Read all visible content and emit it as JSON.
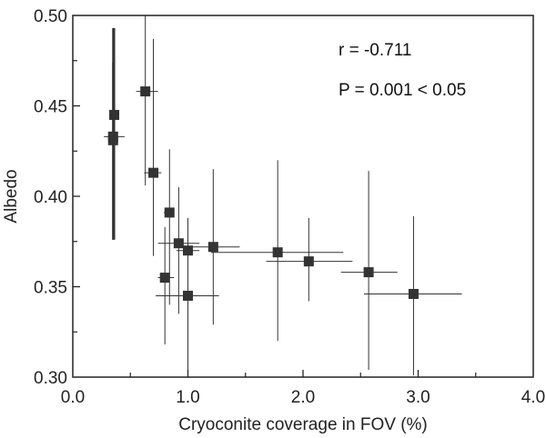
{
  "chart_data": {
    "type": "scatter",
    "xlabel": "Cryoconite coverage in FOV (%)",
    "ylabel": "Albedo",
    "xlim": [
      0.0,
      4.0
    ],
    "ylim": [
      0.3,
      0.5
    ],
    "x_ticks": [
      "0.0",
      "1.0",
      "2.0",
      "3.0",
      "4.0"
    ],
    "y_ticks": [
      "0.30",
      "0.35",
      "0.40",
      "0.45",
      "0.50"
    ],
    "grid": false,
    "marker": "square",
    "marker_color": "#333333",
    "annotations": [
      "r = -0.711",
      "P = 0.001 < 0.05"
    ],
    "points": [
      {
        "x": 0.35,
        "y": 0.431,
        "y_err": [
          0.376,
          0.474
        ],
        "x_err": [
          0.31,
          0.39
        ]
      },
      {
        "x": 0.35,
        "y": 0.433,
        "y_err": [
          0.376,
          0.493
        ],
        "x_err": [
          0.27,
          0.45
        ]
      },
      {
        "x": 0.36,
        "y": 0.445,
        "y_err": [
          0.376,
          0.493
        ],
        "x_err": [
          0.32,
          0.4
        ]
      },
      {
        "x": 0.63,
        "y": 0.458,
        "y_err": [
          0.406,
          0.52
        ],
        "x_err": [
          0.55,
          0.74
        ]
      },
      {
        "x": 0.7,
        "y": 0.413,
        "y_err": [
          0.367,
          0.487
        ],
        "x_err": [
          0.62,
          0.77
        ]
      },
      {
        "x": 0.84,
        "y": 0.391,
        "y_err": [
          0.34,
          0.426
        ],
        "x_err": [
          0.79,
          0.88
        ]
      },
      {
        "x": 0.8,
        "y": 0.355,
        "y_err": [
          0.318,
          0.383
        ],
        "x_err": [
          0.74,
          0.88
        ]
      },
      {
        "x": 0.92,
        "y": 0.374,
        "y_err": [
          0.335,
          0.405
        ],
        "x_err": [
          0.74,
          1.1
        ]
      },
      {
        "x": 1.0,
        "y": 0.37,
        "y_err": [
          0.335,
          0.388
        ],
        "x_err": [
          0.9,
          1.1
        ]
      },
      {
        "x": 1.0,
        "y": 0.345,
        "y_err": [
          0.3,
          0.373
        ],
        "x_err": [
          0.72,
          1.27
        ]
      },
      {
        "x": 1.22,
        "y": 0.372,
        "y_err": [
          0.329,
          0.415
        ],
        "x_err": [
          0.95,
          1.45
        ]
      },
      {
        "x": 1.78,
        "y": 0.369,
        "y_err": [
          0.32,
          0.42
        ],
        "x_err": [
          1.2,
          2.35
        ]
      },
      {
        "x": 2.05,
        "y": 0.364,
        "y_err": [
          0.342,
          0.388
        ],
        "x_err": [
          1.68,
          2.43
        ]
      },
      {
        "x": 2.57,
        "y": 0.358,
        "y_err": [
          0.304,
          0.414
        ],
        "x_err": [
          2.33,
          2.82
        ]
      },
      {
        "x": 2.96,
        "y": 0.346,
        "y_err": [
          0.301,
          0.389
        ],
        "x_err": [
          2.53,
          3.38
        ]
      }
    ]
  }
}
